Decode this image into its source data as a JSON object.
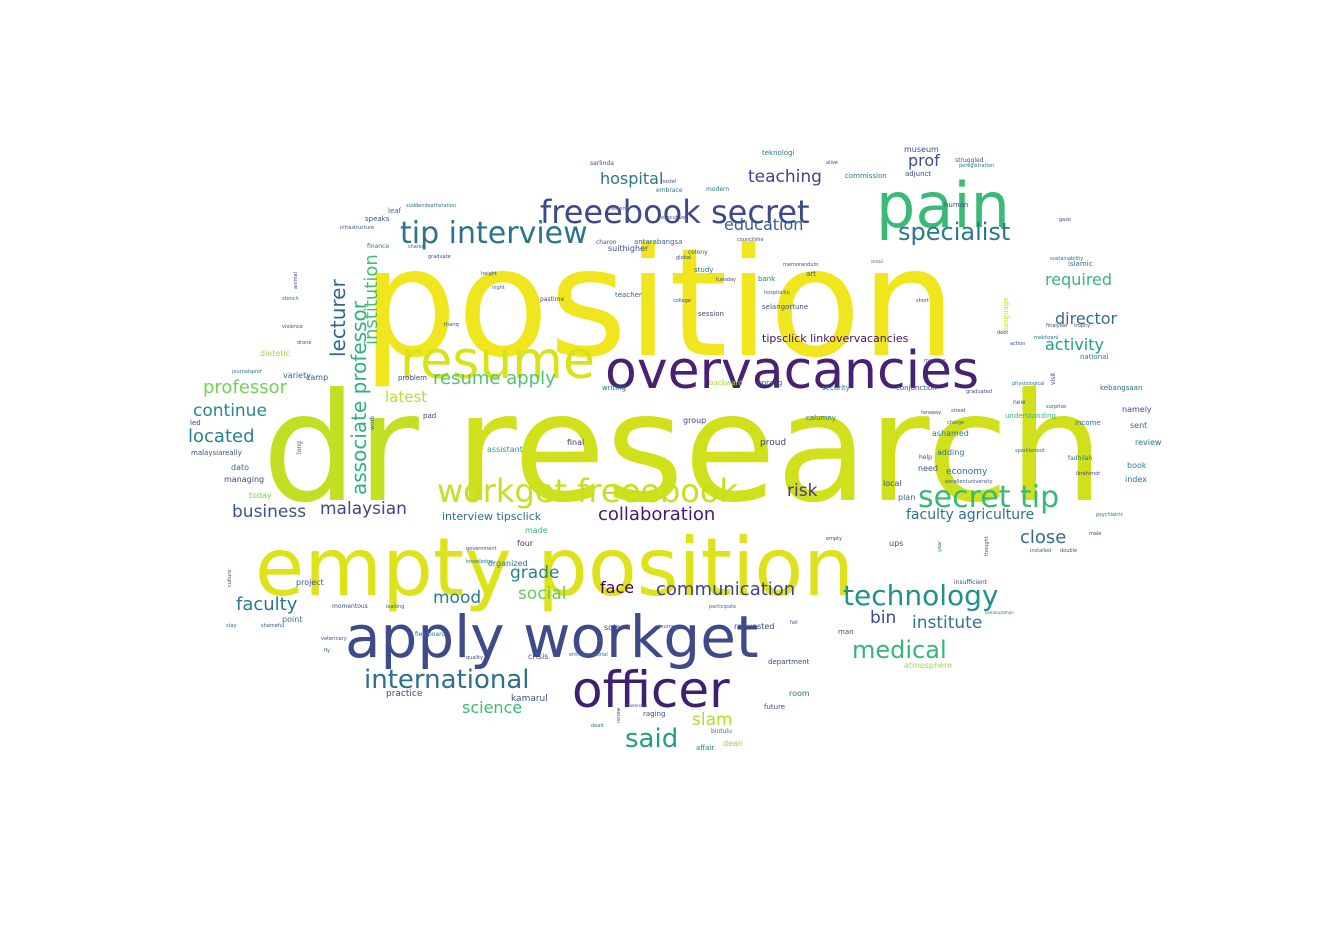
{
  "words": [
    {
      "text": "dr",
      "color": "#c2df23"
    },
    {
      "text": "research",
      "color": "#d0e11c"
    },
    {
      "text": "position",
      "color": "#f1e51d"
    },
    {
      "text": "empty position",
      "color": "#dde318"
    },
    {
      "text": "apply workget",
      "color": "#3e4a89"
    },
    {
      "text": "officer",
      "color": "#3f1f6f"
    },
    {
      "text": "overvacancies",
      "color": "#482173"
    },
    {
      "text": "pain",
      "color": "#3aba76"
    },
    {
      "text": "resume",
      "color": "#d8e219"
    },
    {
      "text": "freeebook secret",
      "color": "#3f4889"
    },
    {
      "text": "tip interview",
      "color": "#2c738e"
    },
    {
      "text": "workget freeebook",
      "color": "#c5e021"
    },
    {
      "text": "secret tip",
      "color": "#38b977"
    },
    {
      "text": "technology",
      "color": "#21918c"
    },
    {
      "text": "international",
      "color": "#2d708e"
    },
    {
      "text": "medical",
      "color": "#35b779"
    },
    {
      "text": "said",
      "color": "#1f9e89"
    },
    {
      "text": "specialist",
      "color": "#2a788e"
    },
    {
      "text": "associate professor",
      "color": "#2db27d"
    },
    {
      "text": "lecturer",
      "color": "#31688e"
    },
    {
      "text": "institution",
      "color": "#46c06f"
    },
    {
      "text": "resume apply",
      "color": "#52c569"
    },
    {
      "text": "collaboration",
      "color": "#481a6c"
    },
    {
      "text": "communication",
      "color": "#404387"
    },
    {
      "text": "professor",
      "color": "#75d054"
    },
    {
      "text": "continue",
      "color": "#238a8d"
    },
    {
      "text": "located",
      "color": "#26828e"
    },
    {
      "text": "business",
      "color": "#3b528b"
    },
    {
      "text": "malaysian",
      "color": "#404688"
    },
    {
      "text": "faculty",
      "color": "#2a788e"
    },
    {
      "text": "teaching",
      "color": "#414487"
    },
    {
      "text": "education",
      "color": "#33638d"
    },
    {
      "text": "hospital",
      "color": "#2a768e"
    },
    {
      "text": "required",
      "color": "#37b878"
    },
    {
      "text": "director",
      "color": "#2e6f8e"
    },
    {
      "text": "activity",
      "color": "#1fa088"
    },
    {
      "text": "institute",
      "color": "#2a788e"
    },
    {
      "text": "faculty agriculture",
      "color": "#2c728e"
    },
    {
      "text": "close",
      "color": "#2e6e8e"
    },
    {
      "text": "risk",
      "color": "#463480"
    },
    {
      "text": "face",
      "color": "#440154"
    },
    {
      "text": "grade",
      "color": "#25848e"
    },
    {
      "text": "social",
      "color": "#65cb5e"
    },
    {
      "text": "mood",
      "color": "#287d8e"
    },
    {
      "text": "bin",
      "color": "#3e4989"
    },
    {
      "text": "latest",
      "color": "#b5de2b"
    },
    {
      "text": "science",
      "color": "#3bbb75"
    },
    {
      "text": "slam",
      "color": "#b2dd2d"
    },
    {
      "text": "prof",
      "color": "#3d4e8a"
    },
    {
      "text": "interview tipsclick",
      "color": "#2c738e"
    },
    {
      "text": "tipsclick linkovervacancies",
      "color": "#471365"
    },
    {
      "text": "kamarul",
      "color": "#3b528b"
    },
    {
      "text": "practice",
      "color": "#3f4889"
    },
    {
      "text": "economy",
      "color": "#2d718e"
    },
    {
      "text": "museum",
      "color": "#3e4a89"
    },
    {
      "text": "managing",
      "color": "#433e85"
    },
    {
      "text": "dato",
      "color": "#31688e"
    },
    {
      "text": "today",
      "color": "#7ad151"
    },
    {
      "text": "dietetic",
      "color": "#a0da39"
    },
    {
      "text": "variety",
      "color": "#2f6c8e"
    },
    {
      "text": "camp",
      "color": "#33638d"
    },
    {
      "text": "project",
      "color": "#3a548c"
    },
    {
      "text": "point",
      "color": "#2a788e"
    },
    {
      "text": "four",
      "color": "#46307e"
    },
    {
      "text": "made",
      "color": "#35b779"
    },
    {
      "text": "organized",
      "color": "#2d708e"
    },
    {
      "text": "assistant",
      "color": "#1f9e89"
    },
    {
      "text": "final",
      "color": "#453781"
    },
    {
      "text": "group",
      "color": "#3e4989"
    },
    {
      "text": "proud",
      "color": "#404688"
    },
    {
      "text": "need",
      "color": "#3b528b"
    },
    {
      "text": "ashamed",
      "color": "#2a788e"
    },
    {
      "text": "adding",
      "color": "#2c728e"
    },
    {
      "text": "local",
      "color": "#3b528b"
    },
    {
      "text": "plan",
      "color": "#31688e"
    },
    {
      "text": "ups",
      "color": "#414487"
    },
    {
      "text": "requested",
      "color": "#3f4788"
    },
    {
      "text": "department",
      "color": "#3e4989"
    },
    {
      "text": "room",
      "color": "#2d708e"
    },
    {
      "text": "future",
      "color": "#3b528b"
    },
    {
      "text": "dean",
      "color": "#8fd744"
    },
    {
      "text": "affair",
      "color": "#26828e"
    },
    {
      "text": "raging",
      "color": "#3e4a89"
    },
    {
      "text": "crisis",
      "color": "#3b528b"
    },
    {
      "text": "sole",
      "color": "#3f4889"
    },
    {
      "text": "book",
      "color": "#25848e"
    },
    {
      "text": "index",
      "color": "#2f6b8e"
    },
    {
      "text": "review",
      "color": "#2c728e"
    },
    {
      "text": "sent",
      "color": "#33638d"
    },
    {
      "text": "namely",
      "color": "#3e4989"
    },
    {
      "text": "income",
      "color": "#2c738e"
    },
    {
      "text": "national",
      "color": "#2a788e"
    },
    {
      "text": "kebangsaan",
      "color": "#31688e"
    },
    {
      "text": "security",
      "color": "#2c728e"
    },
    {
      "text": "conjunction",
      "color": "#3b528b"
    },
    {
      "text": "session",
      "color": "#3f4788"
    },
    {
      "text": "bank",
      "color": "#2a788e"
    },
    {
      "text": "art",
      "color": "#3a548c"
    },
    {
      "text": "study",
      "color": "#2a788e"
    },
    {
      "text": "teacher",
      "color": "#33638d"
    },
    {
      "text": "writing",
      "color": "#2d708e"
    },
    {
      "text": "problem",
      "color": "#3e4989"
    },
    {
      "text": "pad",
      "color": "#414487"
    },
    {
      "text": "sprang",
      "color": "#3b528b"
    },
    {
      "text": "backward",
      "color": "#a8db34"
    },
    {
      "text": "selangortune",
      "color": "#3b528b"
    },
    {
      "text": "teknologi",
      "color": "#2c738e"
    },
    {
      "text": "commission",
      "color": "#2a788e"
    },
    {
      "text": "adjunct",
      "color": "#3e4989"
    },
    {
      "text": "human",
      "color": "#3f4889"
    },
    {
      "text": "islamic",
      "color": "#2d708e"
    },
    {
      "text": "language",
      "color": "#c2df23"
    },
    {
      "text": "understanding",
      "color": "#35b779"
    },
    {
      "text": "leaf",
      "color": "#2c728e"
    },
    {
      "text": "speaks",
      "color": "#3b528b"
    },
    {
      "text": "finance",
      "color": "#2a788e"
    },
    {
      "text": "suithigher",
      "color": "#3e4a89"
    },
    {
      "text": "antarabangsa",
      "color": "#31688e"
    },
    {
      "text": "charon",
      "color": "#3b528b"
    },
    {
      "text": "pastime",
      "color": "#3e4989"
    },
    {
      "text": "visit",
      "color": "#3f4788"
    },
    {
      "text": "fadhilah",
      "color": "#2d708e"
    },
    {
      "text": "new",
      "color": "#3b528b"
    },
    {
      "text": "calumny",
      "color": "#2c728e"
    },
    {
      "text": "help",
      "color": "#3e4989"
    },
    {
      "text": "insufficient",
      "color": "#3b528b"
    },
    {
      "text": "fieldboard",
      "color": "#2c728e"
    },
    {
      "text": "momentous",
      "color": "#3e4a89"
    },
    {
      "text": "leading",
      "color": "#33638d"
    },
    {
      "text": "shameful",
      "color": "#3b528b"
    },
    {
      "text": "knowledge",
      "color": "#2a788e"
    },
    {
      "text": "government",
      "color": "#3b528b"
    },
    {
      "text": "entrepreneurial",
      "color": "#2d708e"
    },
    {
      "text": "quality",
      "color": "#3e4989"
    },
    {
      "text": "journey",
      "color": "#33638d"
    },
    {
      "text": "participate",
      "color": "#2c728e"
    },
    {
      "text": "fail",
      "color": "#3b528b"
    },
    {
      "text": "man",
      "color": "#3e4989"
    },
    {
      "text": "atmosphere",
      "color": "#a0da39"
    },
    {
      "text": "bintulu",
      "color": "#2d708e"
    },
    {
      "text": "double",
      "color": "#3b528b"
    },
    {
      "text": "psychiatric",
      "color": "#2c728e"
    },
    {
      "text": "male",
      "color": "#3e4989"
    },
    {
      "text": "installed",
      "color": "#33638d"
    },
    {
      "text": "thought",
      "color": "#3b528b"
    },
    {
      "text": "year",
      "color": "#2d708e"
    },
    {
      "text": "empty",
      "color": "#3e4989"
    },
    {
      "text": "leadership",
      "color": "#3b528b"
    },
    {
      "text": "dead",
      "color": "#2c728e"
    },
    {
      "text": "renew",
      "color": "#3e4989"
    },
    {
      "text": "fly",
      "color": "#33638d"
    },
    {
      "text": "veterinary",
      "color": "#3b528b"
    },
    {
      "text": "stay",
      "color": "#2d708e"
    },
    {
      "text": "culture",
      "color": "#3e4989"
    },
    {
      "text": "long",
      "color": "#3b528b"
    },
    {
      "text": "work",
      "color": "#2c728e"
    },
    {
      "text": "led",
      "color": "#3e4989"
    },
    {
      "text": "malaysiareally",
      "color": "#3b528b"
    },
    {
      "text": "journalsprof",
      "color": "#2d708e"
    },
    {
      "text": "violence",
      "color": "#3e4989"
    },
    {
      "text": "drone",
      "color": "#3b528b"
    },
    {
      "text": "stench",
      "color": "#2c728e"
    },
    {
      "text": "animal",
      "color": "#3e4989"
    },
    {
      "text": "infrastructure",
      "color": "#3b528b"
    },
    {
      "text": "suddendeathstation",
      "color": "#2d708e"
    },
    {
      "text": "sarlinda",
      "color": "#3e4989"
    },
    {
      "text": "hostel",
      "color": "#3b528b"
    },
    {
      "text": "embrace",
      "color": "#2c728e"
    },
    {
      "text": "executive",
      "color": "#3e4989"
    },
    {
      "text": "graduate",
      "color": "#3b528b"
    },
    {
      "text": "shared",
      "color": "#2d708e"
    },
    {
      "text": "global",
      "color": "#3e4989"
    },
    {
      "text": "height",
      "color": "#3b528b"
    },
    {
      "text": "night",
      "color": "#2c728e"
    },
    {
      "text": "thariq",
      "color": "#3e4989"
    },
    {
      "text": "colony",
      "color": "#3b528b"
    },
    {
      "text": "modern",
      "color": "#2d708e"
    },
    {
      "text": "councilshe",
      "color": "#3e4989"
    },
    {
      "text": "memorandum",
      "color": "#3b528b"
    },
    {
      "text": "ascend",
      "color": "#2c728e"
    },
    {
      "text": "tuesday",
      "color": "#3e4989"
    },
    {
      "text": "college",
      "color": "#3b528b"
    },
    {
      "text": "hospitalkp",
      "color": "#2d708e"
    },
    {
      "text": "alive",
      "color": "#3e4989"
    },
    {
      "text": "struggled",
      "color": "#3b528b"
    },
    {
      "text": "peregistration",
      "color": "#2c728e"
    },
    {
      "text": "short",
      "color": "#3e4989"
    },
    {
      "text": "gaze",
      "color": "#3b528b"
    },
    {
      "text": "sustainability",
      "color": "#2d708e"
    },
    {
      "text": "finalyear",
      "color": "#3e4989"
    },
    {
      "text": "trophy",
      "color": "#3b528b"
    },
    {
      "text": "mekhzani",
      "color": "#2c728e"
    },
    {
      "text": "debt",
      "color": "#3e4989"
    },
    {
      "text": "action",
      "color": "#3b528b"
    },
    {
      "text": "physiological",
      "color": "#2d708e"
    },
    {
      "text": "graduated",
      "color": "#3e4989"
    },
    {
      "text": "street",
      "color": "#3b528b"
    },
    {
      "text": "charge",
      "color": "#2c728e"
    },
    {
      "text": "faraway",
      "color": "#3e4989"
    },
    {
      "text": "excellentuniversity",
      "color": "#3b528b"
    },
    {
      "text": "sparklerood",
      "color": "#2d708e"
    },
    {
      "text": "ibrahimdr",
      "color": "#3e4989"
    },
    {
      "text": "surprise",
      "color": "#3b528b"
    },
    {
      "text": "kamaruzaman",
      "color": "#2c728e"
    },
    {
      "text": "machine",
      "color": "#3e4989"
    },
    {
      "text": "ismail",
      "color": "#3b528b"
    }
  ]
}
